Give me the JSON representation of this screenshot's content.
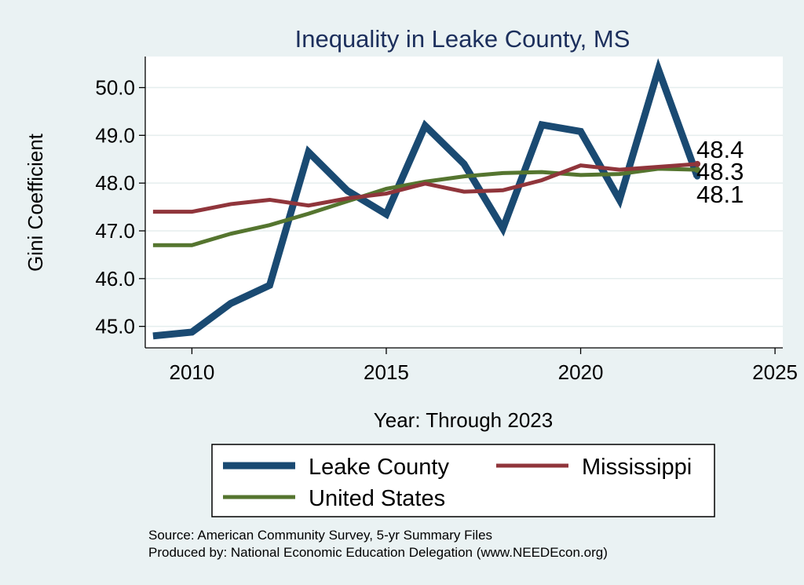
{
  "chart_data": {
    "type": "line",
    "title": "Inequality in Leake County, MS",
    "xlabel": "Year: Through 2023",
    "ylabel": "Gini Coefficient",
    "xlim": [
      2008.8,
      2025.2
    ],
    "ylim": [
      44.55,
      50.65
    ],
    "x_ticks": [
      2010,
      2015,
      2020,
      2025
    ],
    "x_tick_labels": [
      "2010",
      "2015",
      "2020",
      "2025"
    ],
    "y_ticks": [
      45,
      46,
      47,
      48,
      49,
      50
    ],
    "y_tick_labels": [
      "45.0",
      "46.0",
      "47.0",
      "48.0",
      "49.0",
      "50.0"
    ],
    "grid": true,
    "x": [
      2009,
      2010,
      2011,
      2012,
      2013,
      2014,
      2015,
      2016,
      2017,
      2018,
      2019,
      2020,
      2021,
      2022,
      2023
    ],
    "series": [
      {
        "name": "Leake County",
        "color": "#1a4a72",
        "values": [
          44.8,
          44.88,
          45.48,
          45.86,
          48.65,
          47.84,
          47.35,
          49.2,
          48.4,
          47.05,
          49.22,
          49.08,
          47.65,
          50.38,
          48.14
        ]
      },
      {
        "name": "Mississippi",
        "color": "#90353b",
        "values": [
          47.4,
          47.4,
          47.56,
          47.65,
          47.53,
          47.68,
          47.78,
          47.99,
          47.82,
          47.85,
          48.06,
          48.37,
          48.28,
          48.34,
          48.4
        ]
      },
      {
        "name": "United States",
        "color": "#55752f",
        "values": [
          46.7,
          46.7,
          46.94,
          47.12,
          47.36,
          47.62,
          47.88,
          48.03,
          48.14,
          48.21,
          48.23,
          48.17,
          48.19,
          48.3,
          48.28
        ]
      }
    ],
    "end_labels": [
      "48.4",
      "48.3",
      "48.1"
    ],
    "legend": {
      "placement": "bottom",
      "entries": [
        "Leake County",
        "Mississippi",
        "United States"
      ]
    }
  },
  "footer": {
    "source": "Source: American Community Survey, 5-yr Summary Files",
    "produced_by": "Produced by: National Economic Education Delegation (www.NEEDEcon.org)"
  }
}
